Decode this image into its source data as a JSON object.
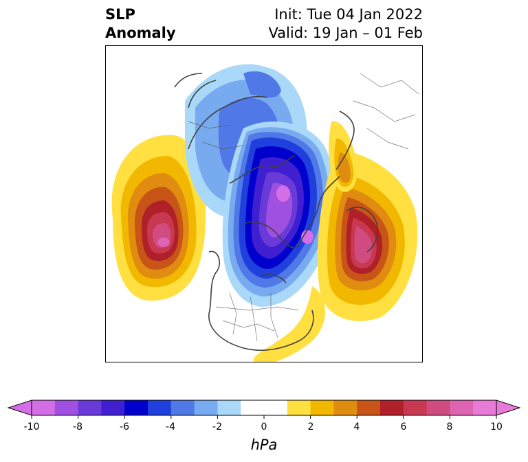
{
  "title": {
    "left_line1": "SLP",
    "left_line2": "Anomaly",
    "right_line1": "Init: Tue 04 Jan 2022",
    "right_line2": "Valid: 19 Jan – 01 Feb"
  },
  "colorbar": {
    "unit": "hPa",
    "ticks": [
      "-10",
      "-8",
      "-6",
      "-4",
      "-2",
      "0",
      "2",
      "4",
      "6",
      "8",
      "10"
    ],
    "colors": [
      "#d46ee6",
      "#a050e0",
      "#6a3ad8",
      "#3f1fd0",
      "#0000cc",
      "#2040dd",
      "#5078e6",
      "#78aaf0",
      "#aad8f8",
      "#ffffff",
      "#ffffff",
      "#ffe040",
      "#f2b800",
      "#e08c10",
      "#c85418",
      "#b02028",
      "#c83850",
      "#d04c80",
      "#dc64b0",
      "#e87ad8"
    ]
  },
  "map": {
    "projection": "north-polar-stereographic",
    "features": [
      {
        "name": "low-center-arctic-canada",
        "sign": "negative",
        "peak": -10
      },
      {
        "name": "high-center-north-pacific",
        "sign": "positive",
        "peak": 9
      },
      {
        "name": "high-center-scandinavia",
        "sign": "positive",
        "peak": 8
      },
      {
        "name": "low-belt-siberia",
        "sign": "negative",
        "peak": -4
      },
      {
        "name": "high-ridge-east-siberia",
        "sign": "positive",
        "peak": 5
      },
      {
        "name": "high-atlantic-southeast",
        "sign": "positive",
        "peak": 2
      }
    ]
  }
}
